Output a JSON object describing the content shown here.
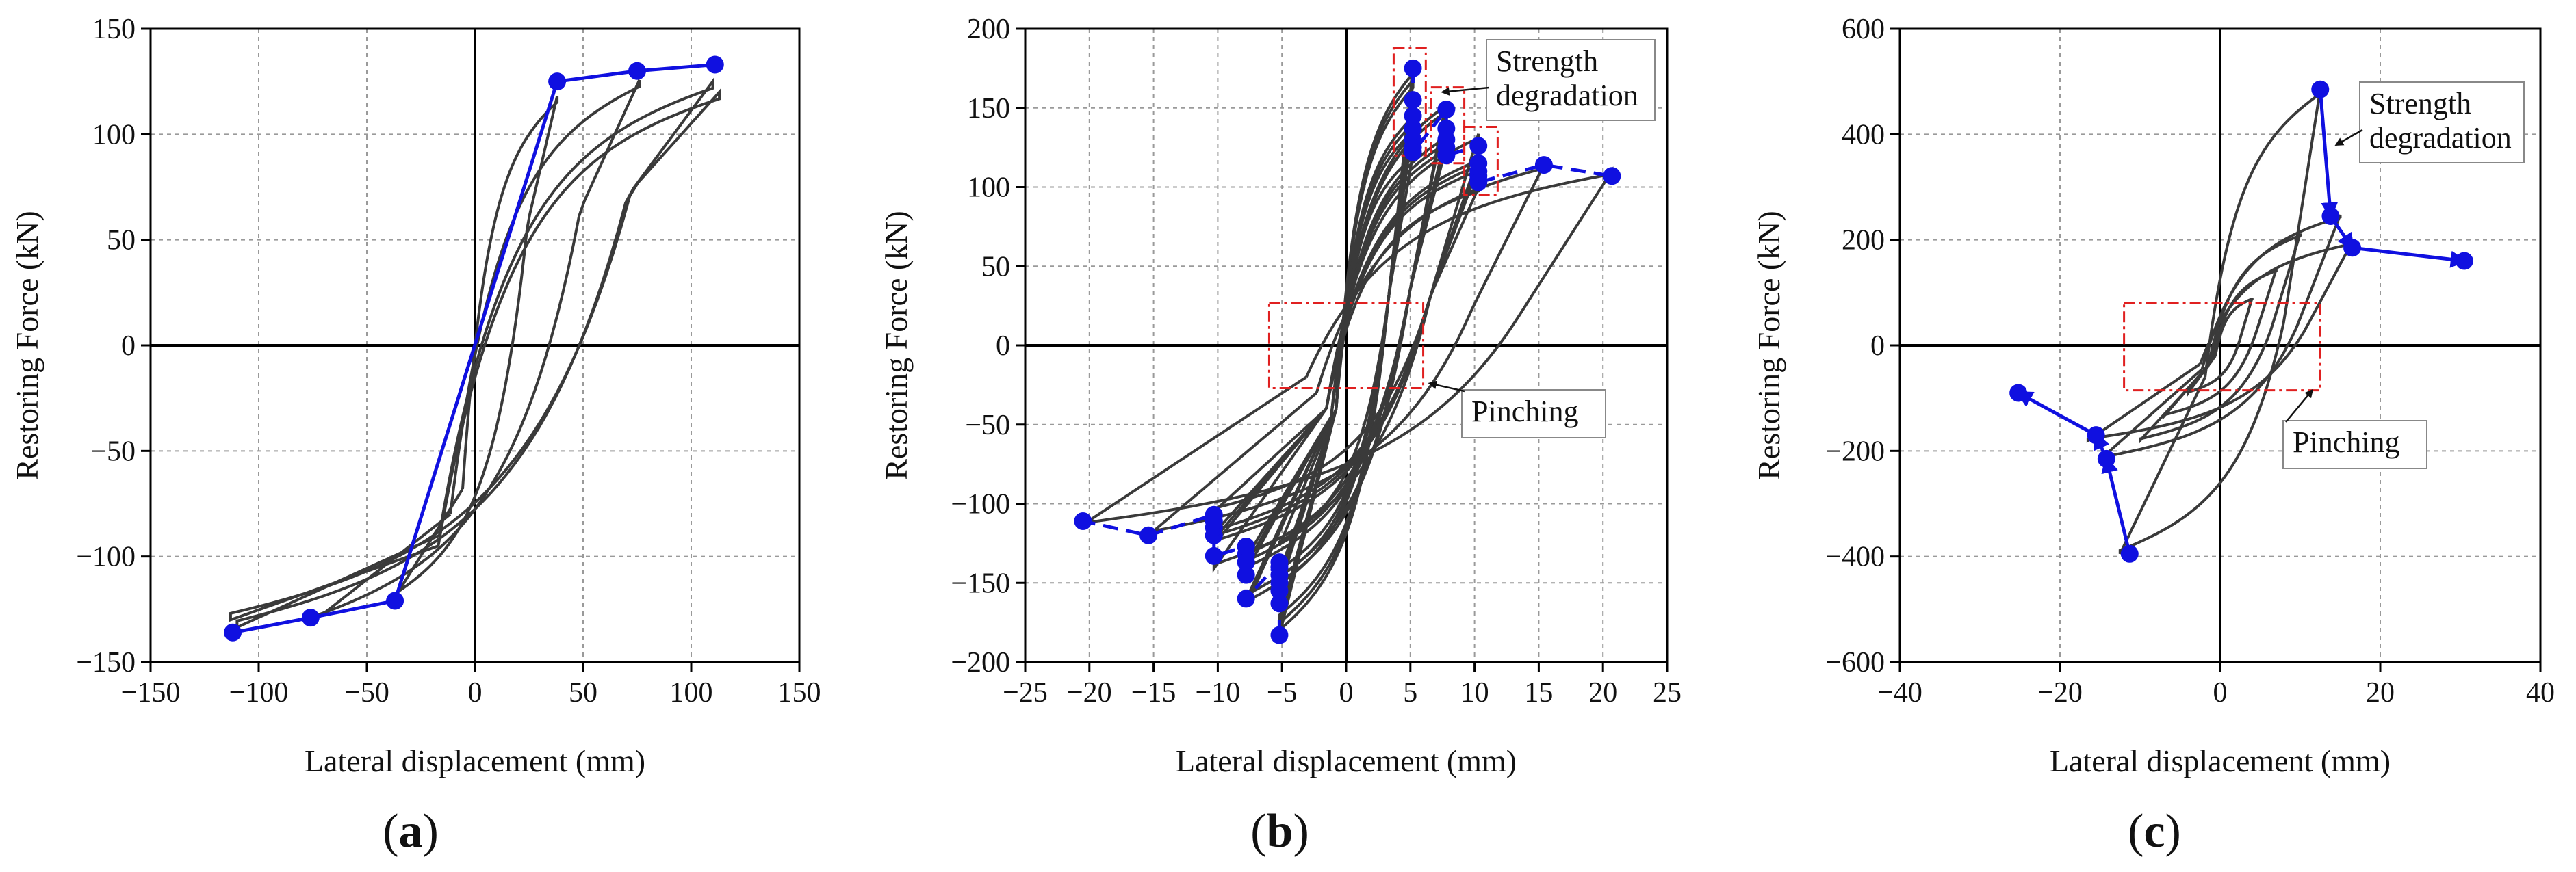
{
  "chart_data": [
    {
      "type": "line",
      "panel_label": "(a)",
      "panel_letter": "a",
      "xlabel": "Lateral displacement (mm)",
      "ylabel": "Restoring Force (kN)",
      "xlim": [
        -150,
        150
      ],
      "ylim": [
        -150,
        150
      ],
      "xticks": [
        -150,
        -100,
        -50,
        0,
        50,
        100,
        150
      ],
      "yticks": [
        -150,
        -100,
        -50,
        0,
        50,
        100,
        150
      ],
      "xtick_labels": [
        "−150",
        "−100",
        "−50",
        "0",
        "50",
        "100",
        "150"
      ],
      "ytick_labels": [
        "−150",
        "−100",
        "−50",
        "0",
        "50",
        "100",
        "150"
      ],
      "grid": true,
      "colors": {
        "hysteresis": "#3a3a3a",
        "envelope": "#1010e0"
      },
      "hysteresis_loops": [
        {
          "amplitude": 38,
          "pos_peak": 118,
          "neg_peak": -121,
          "pos_residual": 72,
          "neg_residual": -68
        },
        {
          "amplitude": 76,
          "pos_peak": 122,
          "neg_peak": -128,
          "pos_residual": 80,
          "neg_residual": -80
        },
        {
          "amplitude": 110,
          "pos_peak": 118,
          "neg_peak": -126,
          "pos_residual": 88,
          "neg_residual": -90
        },
        {
          "amplitude": 113,
          "pos_peak": 120,
          "neg_peak": -130,
          "pos_residual": 92,
          "neg_residual": -95
        }
      ],
      "series": [
        {
          "name": "",
          "style": "solid",
          "x": [
            -112,
            -76,
            -37,
            38,
            75,
            111
          ],
          "y": [
            -136,
            -129,
            -121,
            125,
            130,
            133
          ]
        }
      ],
      "annotations": []
    },
    {
      "type": "line",
      "panel_label": "(b)",
      "panel_letter": "b",
      "xlabel": "Lateral displacement (mm)",
      "ylabel": "Restoring Force (kN)",
      "xlim": [
        -25,
        25
      ],
      "ylim": [
        -200,
        200
      ],
      "xticks": [
        -25,
        -20,
        -15,
        -10,
        -5,
        0,
        5,
        10,
        15,
        20,
        25
      ],
      "yticks": [
        -200,
        -150,
        -100,
        -50,
        0,
        50,
        100,
        150,
        200
      ],
      "xtick_labels": [
        "−25",
        "−20",
        "−15",
        "−10",
        "−5",
        "0",
        "5",
        "10",
        "15",
        "20",
        "25"
      ],
      "ytick_labels": [
        "−200",
        "−150",
        "−100",
        "−50",
        "0",
        "50",
        "100",
        "150",
        "200"
      ],
      "grid": true,
      "colors": {
        "hysteresis": "#3a3a3a",
        "envelope": "#1010e0",
        "highlight": "#e02020"
      },
      "hysteresis_loops": [
        {
          "amplitude": 5.2,
          "pos_peak": 175,
          "neg_peak": -183,
          "pos_residual": 40,
          "neg_residual": -40,
          "repeats": 7
        },
        {
          "amplitude": 7.8,
          "pos_peak": 150,
          "neg_peak": -160,
          "pos_residual": 45,
          "neg_residual": -45,
          "repeats": 5
        },
        {
          "amplitude": 10.3,
          "pos_peak": 126,
          "neg_peak": -133,
          "pos_residual": 40,
          "neg_residual": -40,
          "repeats": 5
        },
        {
          "amplitude": 15.4,
          "pos_peak": 114,
          "neg_peak": -120,
          "pos_residual": 30,
          "neg_residual": -30,
          "repeats": 1
        },
        {
          "amplitude": 20.7,
          "pos_peak": 107,
          "neg_peak": -111,
          "pos_residual": 20,
          "neg_residual": -20,
          "repeats": 1
        }
      ],
      "series": [
        {
          "name": "",
          "style": "dashed",
          "x": [
            5.2,
            5.2,
            5.2,
            5.2,
            5.2,
            5.2,
            5.2,
            7.8,
            7.8,
            7.8,
            7.8,
            7.8,
            10.3,
            10.3,
            10.3,
            10.3,
            10.3,
            15.4,
            20.7
          ],
          "y": [
            175,
            155,
            145,
            137,
            130,
            125,
            122,
            149,
            137,
            130,
            125,
            120,
            126,
            115,
            110,
            107,
            103,
            114,
            107
          ]
        },
        {
          "name": "",
          "style": "dashed",
          "x": [
            -5.2,
            -5.2,
            -5.2,
            -5.2,
            -5.2,
            -5.2,
            -5.2,
            -7.8,
            -7.8,
            -7.8,
            -7.8,
            -7.8,
            -10.3,
            -10.3,
            -10.3,
            -10.3,
            -10.3,
            -15.4,
            -20.5
          ],
          "y": [
            -183,
            -163,
            -155,
            -150,
            -145,
            -140,
            -137,
            -160,
            -145,
            -137,
            -132,
            -127,
            -133,
            -120,
            -115,
            -111,
            -107,
            -120,
            -111
          ]
        }
      ],
      "highlight_boxes": [
        {
          "x": [
            -6,
            6
          ],
          "y": [
            -27,
            27
          ]
        },
        {
          "x": [
            3.7,
            6.2
          ],
          "y": [
            120,
            188
          ]
        },
        {
          "x": [
            6.6,
            9.2
          ],
          "y": [
            115,
            163
          ]
        },
        {
          "x": [
            9.2,
            11.8
          ],
          "y": [
            95,
            138
          ]
        }
      ],
      "annotations": [
        {
          "text_lines": [
            "Strength",
            "degradation"
          ],
          "target": [
            7.5,
            160
          ]
        },
        {
          "text_lines": [
            "Pinching"
          ],
          "target": [
            6.5,
            -24
          ]
        }
      ]
    },
    {
      "type": "line",
      "panel_label": "(c)",
      "panel_letter": "c",
      "xlabel": "Lateral displacement (mm)",
      "ylabel": "Restoring Force (kN)",
      "xlim": [
        -40,
        40
      ],
      "ylim": [
        -600,
        600
      ],
      "xticks": [
        -40,
        -20,
        0,
        20,
        40
      ],
      "yticks": [
        -600,
        -400,
        -200,
        0,
        200,
        400,
        600
      ],
      "xtick_labels": [
        "−40",
        "−20",
        "0",
        "20",
        "40"
      ],
      "ytick_labels": [
        "−600",
        "−400",
        "−200",
        "0",
        "200",
        "400",
        "600"
      ],
      "grid": true,
      "colors": {
        "hysteresis": "#3a3a3a",
        "envelope": "#1010e0",
        "highlight": "#e02020"
      },
      "hysteresis_loops": [
        {
          "amplitude": 4,
          "pos_peak": 90,
          "neg_peak": -90,
          "pos_residual": 20,
          "neg_residual": -20
        },
        {
          "amplitude": 7,
          "pos_peak": 140,
          "neg_peak": -130,
          "pos_residual": 30,
          "neg_residual": -30
        },
        {
          "amplitude": 10,
          "pos_peak": 200,
          "neg_peak": -170,
          "pos_residual": 40,
          "neg_residual": -40
        },
        {
          "amplitude": 12.5,
          "pos_peak": 485,
          "neg_peak": -395,
          "pos_residual": 60,
          "neg_residual": -60
        },
        {
          "amplitude": 15,
          "pos_peak": 240,
          "neg_peak": -210,
          "pos_residual": 45,
          "neg_residual": -45
        },
        {
          "amplitude": 16.5,
          "pos_peak": 185,
          "neg_peak": -170,
          "pos_residual": 35,
          "neg_residual": -35
        }
      ],
      "series": [
        {
          "name": "",
          "style": "solid-arrow",
          "x": [
            12.5,
            13.8,
            16.5,
            30.5
          ],
          "y": [
            485,
            245,
            185,
            160
          ]
        },
        {
          "name": "",
          "style": "solid-arrow",
          "x": [
            -11.3,
            -14.2,
            -15.5,
            -25.2
          ],
          "y": [
            -395,
            -215,
            -170,
            -90
          ]
        }
      ],
      "highlight_boxes": [
        {
          "x": [
            -12,
            12.5
          ],
          "y": [
            -85,
            80
          ]
        }
      ],
      "annotations": [
        {
          "text_lines": [
            "Strength",
            "degradation"
          ],
          "target": [
            14.5,
            380
          ]
        },
        {
          "text_lines": [
            "Pinching"
          ],
          "target": [
            11.5,
            -85
          ]
        }
      ]
    }
  ]
}
